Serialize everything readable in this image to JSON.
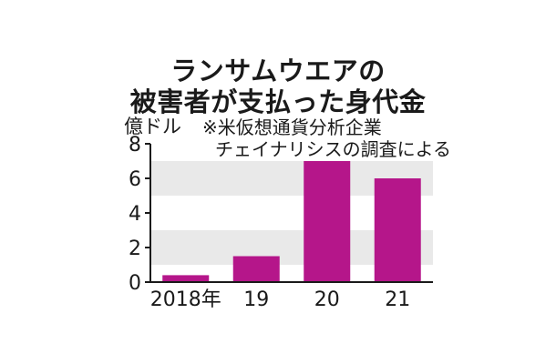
{
  "chart_data": {
    "type": "bar",
    "title": [
      "ランサムウエアの",
      "被害者が支払った身代金"
    ],
    "unit": "億ドル",
    "note": [
      "※米仮想通貨分析企業",
      "チェイナリシスの調査による"
    ],
    "categories": [
      "2018年",
      "19",
      "20",
      "21"
    ],
    "values": [
      0.4,
      1.5,
      7.0,
      6.0
    ],
    "yticks": [
      "0",
      "2",
      "4",
      "6",
      "8"
    ],
    "ylim": [
      0,
      8
    ],
    "grid": "alternating bands",
    "colors": {
      "bar": "#b5168a",
      "band": "#e9e9e9",
      "axis": "#1a1a1a"
    }
  }
}
